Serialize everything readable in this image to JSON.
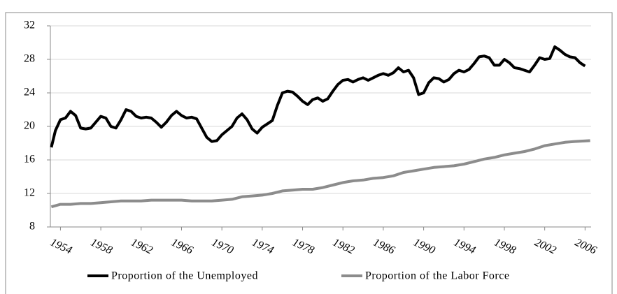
{
  "chart_data": {
    "type": "line",
    "xlim": [
      1953.0,
      2006.6
    ],
    "xticks": [
      1954,
      1958,
      1962,
      1966,
      1970,
      1974,
      1978,
      1982,
      1986,
      1990,
      1994,
      1998,
      2002,
      2006
    ],
    "ylim": [
      8,
      32
    ],
    "yticks": [
      8,
      12,
      16,
      20,
      24,
      28,
      32
    ],
    "grid": true,
    "legend": "bottom",
    "series": [
      {
        "name": "Proportion of the Unemployed",
        "color": "#000000",
        "x": [
          1953.1,
          1953.5,
          1954.0,
          1954.5,
          1955.0,
          1955.5,
          1956.0,
          1956.5,
          1957.0,
          1957.5,
          1958.0,
          1958.5,
          1959.0,
          1959.5,
          1960.0,
          1960.5,
          1961.0,
          1961.5,
          1962.0,
          1962.5,
          1963.0,
          1963.5,
          1964.0,
          1964.5,
          1965.0,
          1965.5,
          1966.0,
          1966.5,
          1967.0,
          1967.5,
          1968.0,
          1968.5,
          1969.0,
          1969.5,
          1970.0,
          1970.5,
          1971.0,
          1971.5,
          1972.0,
          1972.5,
          1973.0,
          1973.5,
          1974.0,
          1974.5,
          1975.0,
          1975.5,
          1976.0,
          1976.5,
          1977.0,
          1977.5,
          1978.0,
          1978.5,
          1979.0,
          1979.5,
          1980.0,
          1980.5,
          1981.0,
          1981.5,
          1982.0,
          1982.5,
          1983.0,
          1983.5,
          1984.0,
          1984.5,
          1985.0,
          1985.5,
          1986.0,
          1986.5,
          1987.0,
          1987.5,
          1988.0,
          1988.5,
          1989.0,
          1989.5,
          1990.0,
          1990.5,
          1991.0,
          1991.5,
          1992.0,
          1992.5,
          1993.0,
          1993.5,
          1994.0,
          1994.5,
          1995.0,
          1995.5,
          1996.0,
          1996.5,
          1997.0,
          1997.5,
          1998.0,
          1998.5,
          1999.0,
          1999.5,
          2000.0,
          2000.5,
          2001.0,
          2001.5,
          2002.0,
          2002.5,
          2003.0,
          2003.5,
          2004.0,
          2004.5,
          2005.0,
          2005.5,
          2006.0
        ],
        "values": [
          17.5,
          19.5,
          20.8,
          21.0,
          21.8,
          21.3,
          19.8,
          19.7,
          19.8,
          20.5,
          21.2,
          21.0,
          20.0,
          19.8,
          20.8,
          22.0,
          21.8,
          21.2,
          21.0,
          21.1,
          21.0,
          20.5,
          19.9,
          20.5,
          21.3,
          21.8,
          21.3,
          21.0,
          21.1,
          20.9,
          19.8,
          18.7,
          18.2,
          18.3,
          19.0,
          19.5,
          20.0,
          21.0,
          21.5,
          20.8,
          19.7,
          19.2,
          19.9,
          20.3,
          20.7,
          22.5,
          24.0,
          24.2,
          24.1,
          23.6,
          23.0,
          22.6,
          23.2,
          23.4,
          23.0,
          23.3,
          24.2,
          25.0,
          25.5,
          25.6,
          25.3,
          25.6,
          25.8,
          25.5,
          25.8,
          26.1,
          26.3,
          26.1,
          26.4,
          27.0,
          26.5,
          26.7,
          25.8,
          23.8,
          24.0,
          25.2,
          25.8,
          25.7,
          25.3,
          25.6,
          26.3,
          26.7,
          26.5,
          26.8,
          27.5,
          28.3,
          28.4,
          28.2,
          27.3,
          27.3,
          28.0,
          27.6,
          27.0,
          26.9,
          26.7,
          26.5,
          27.3,
          28.2,
          28.0,
          28.1,
          29.5,
          29.1,
          28.6,
          28.3,
          28.2,
          27.6,
          27.2
        ]
      },
      {
        "name": "Proportion of the Labor Force",
        "color": "#8c8c8c",
        "x": [
          1953.1,
          1954,
          1955,
          1956,
          1957,
          1958,
          1959,
          1960,
          1961,
          1962,
          1963,
          1964,
          1965,
          1966,
          1967,
          1968,
          1969,
          1970,
          1971,
          1972,
          1973,
          1974,
          1975,
          1976,
          1977,
          1978,
          1979,
          1980,
          1981,
          1982,
          1983,
          1984,
          1985,
          1986,
          1987,
          1988,
          1989,
          1990,
          1991,
          1992,
          1993,
          1994,
          1995,
          1996,
          1997,
          1998,
          1999,
          2000,
          2001,
          2002,
          2003,
          2004,
          2005,
          2006.5
        ],
        "values": [
          10.4,
          10.7,
          10.7,
          10.8,
          10.8,
          10.9,
          11.0,
          11.1,
          11.1,
          11.1,
          11.2,
          11.2,
          11.2,
          11.2,
          11.1,
          11.1,
          11.1,
          11.2,
          11.3,
          11.6,
          11.7,
          11.8,
          12.0,
          12.3,
          12.4,
          12.5,
          12.5,
          12.7,
          13.0,
          13.3,
          13.5,
          13.6,
          13.8,
          13.9,
          14.1,
          14.5,
          14.7,
          14.9,
          15.1,
          15.2,
          15.3,
          15.5,
          15.8,
          16.1,
          16.3,
          16.6,
          16.8,
          17.0,
          17.3,
          17.7,
          17.9,
          18.1,
          18.2,
          18.3
        ]
      }
    ]
  }
}
